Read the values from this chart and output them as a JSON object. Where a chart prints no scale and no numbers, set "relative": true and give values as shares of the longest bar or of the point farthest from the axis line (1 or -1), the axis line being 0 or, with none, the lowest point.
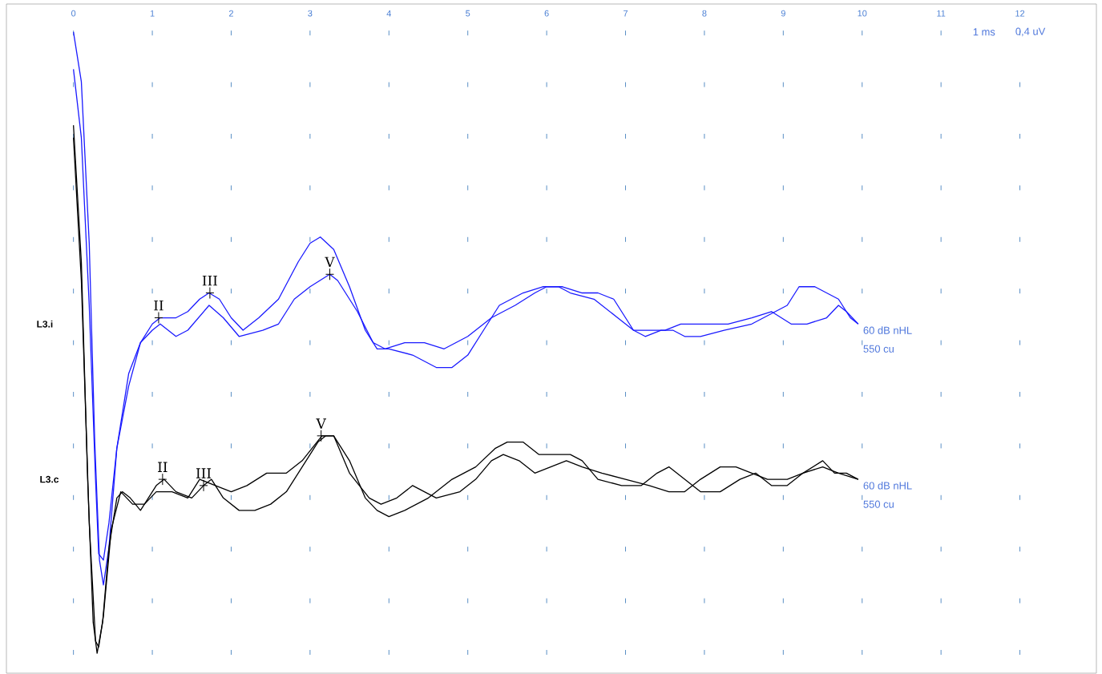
{
  "chart_data": {
    "type": "line",
    "relative": true,
    "xlim": [
      -0.85,
      12.97
    ],
    "xticks": [
      0,
      1,
      2,
      3,
      4,
      5,
      6,
      7,
      8,
      9,
      10,
      11,
      12
    ],
    "grid": "x",
    "line_style": "solid",
    "series": [
      {
        "color": "#1a1aff",
        "x": [
          0,
          0.1,
          0.2,
          0.27,
          0.33,
          0.38,
          0.45,
          0.55,
          0.7,
          0.85,
          1.0,
          1.1,
          1.3,
          1.45,
          1.6,
          1.72,
          1.85,
          2.0,
          2.15,
          2.35,
          2.6,
          2.85,
          3.0,
          3.13,
          3.3,
          3.5,
          3.7,
          3.85,
          4.0,
          4.3,
          4.6,
          4.8,
          5.0,
          5.2,
          5.4,
          5.7,
          5.95,
          6.2,
          6.45,
          6.65,
          6.85,
          7.0,
          7.1,
          7.25,
          7.45,
          7.6,
          7.75,
          7.95,
          8.25,
          8.6,
          8.9,
          9.05,
          9.2,
          9.4,
          9.55,
          9.7,
          9.85,
          9.95
        ],
        "values": [
          1.0,
          0.92,
          0.66,
          0.34,
          0.15,
          0.11,
          0.17,
          0.33,
          0.45,
          0.5,
          0.53,
          0.54,
          0.54,
          0.55,
          0.57,
          0.58,
          0.57,
          0.54,
          0.52,
          0.54,
          0.57,
          0.63,
          0.66,
          0.67,
          0.65,
          0.59,
          0.52,
          0.49,
          0.49,
          0.48,
          0.46,
          0.46,
          0.48,
          0.52,
          0.56,
          0.58,
          0.59,
          0.59,
          0.58,
          0.58,
          0.57,
          0.54,
          0.52,
          0.51,
          0.52,
          0.52,
          0.51,
          0.51,
          0.52,
          0.53,
          0.55,
          0.56,
          0.59,
          0.59,
          0.58,
          0.57,
          0.54,
          0.53
        ]
      },
      {
        "color": "#1a1aff",
        "x": [
          0,
          0.1,
          0.2,
          0.28,
          0.32,
          0.38,
          0.45,
          0.55,
          0.7,
          0.85,
          1.0,
          1.1,
          1.3,
          1.45,
          1.72,
          1.9,
          2.1,
          2.4,
          2.6,
          2.8,
          3.0,
          3.25,
          3.35,
          3.6,
          3.8,
          3.95,
          4.2,
          4.45,
          4.7,
          5.0,
          5.3,
          5.6,
          5.85,
          6.0,
          6.15,
          6.3,
          6.6,
          6.9,
          7.1,
          7.3,
          7.5,
          7.7,
          8.0,
          8.3,
          8.6,
          8.85,
          9.1,
          9.3,
          9.55,
          9.7,
          9.8,
          9.95
        ],
        "values": [
          0.94,
          0.83,
          0.56,
          0.28,
          0.16,
          0.15,
          0.21,
          0.33,
          0.43,
          0.5,
          0.52,
          0.53,
          0.51,
          0.52,
          0.56,
          0.54,
          0.51,
          0.52,
          0.53,
          0.57,
          0.59,
          0.61,
          0.6,
          0.55,
          0.5,
          0.49,
          0.5,
          0.5,
          0.49,
          0.51,
          0.54,
          0.56,
          0.58,
          0.59,
          0.59,
          0.58,
          0.57,
          0.54,
          0.52,
          0.52,
          0.52,
          0.53,
          0.53,
          0.53,
          0.54,
          0.55,
          0.53,
          0.53,
          0.54,
          0.56,
          0.55,
          0.53
        ]
      },
      {
        "color": "#000000",
        "x": [
          0,
          0.1,
          0.18,
          0.25,
          0.3,
          0.37,
          0.45,
          0.55,
          0.62,
          0.72,
          0.85,
          0.95,
          1.05,
          1.15,
          1.3,
          1.5,
          1.65,
          1.75,
          1.9,
          2.1,
          2.3,
          2.5,
          2.7,
          2.9,
          3.1,
          3.2,
          3.3,
          3.5,
          3.7,
          3.85,
          4.0,
          4.2,
          4.5,
          4.8,
          5.1,
          5.35,
          5.5,
          5.7,
          5.9,
          6.1,
          6.3,
          6.45,
          6.65,
          6.95,
          7.2,
          7.4,
          7.55,
          7.75,
          7.95,
          8.2,
          8.45,
          8.65,
          8.85,
          9.05,
          9.25,
          9.5,
          9.65,
          9.8,
          9.95
        ],
        "values": [
          0.85,
          0.63,
          0.28,
          0.05,
          0.0,
          0.05,
          0.17,
          0.25,
          0.26,
          0.25,
          0.23,
          0.25,
          0.27,
          0.28,
          0.26,
          0.25,
          0.27,
          0.28,
          0.25,
          0.23,
          0.23,
          0.24,
          0.26,
          0.3,
          0.34,
          0.35,
          0.35,
          0.31,
          0.25,
          0.23,
          0.22,
          0.23,
          0.25,
          0.28,
          0.3,
          0.33,
          0.34,
          0.34,
          0.32,
          0.32,
          0.32,
          0.31,
          0.28,
          0.27,
          0.27,
          0.29,
          0.3,
          0.28,
          0.26,
          0.26,
          0.28,
          0.29,
          0.27,
          0.27,
          0.29,
          0.31,
          0.29,
          0.29,
          0.28
        ]
      },
      {
        "color": "#000000",
        "x": [
          0,
          0.1,
          0.2,
          0.28,
          0.32,
          0.38,
          0.48,
          0.6,
          0.75,
          0.9,
          1.05,
          1.25,
          1.45,
          1.6,
          1.8,
          2.0,
          2.2,
          2.45,
          2.7,
          2.9,
          3.15,
          3.3,
          3.5,
          3.75,
          3.9,
          4.1,
          4.3,
          4.6,
          4.9,
          5.1,
          5.3,
          5.45,
          5.65,
          5.85,
          6.05,
          6.25,
          6.45,
          6.7,
          7.0,
          7.3,
          7.55,
          7.75,
          7.95,
          8.2,
          8.4,
          8.6,
          8.8,
          9.05,
          9.25,
          9.5,
          9.7,
          9.95
        ],
        "values": [
          0.83,
          0.6,
          0.21,
          0.02,
          0.01,
          0.06,
          0.2,
          0.26,
          0.24,
          0.24,
          0.26,
          0.26,
          0.25,
          0.28,
          0.27,
          0.26,
          0.27,
          0.29,
          0.29,
          0.31,
          0.35,
          0.35,
          0.29,
          0.25,
          0.24,
          0.25,
          0.27,
          0.25,
          0.26,
          0.28,
          0.31,
          0.32,
          0.31,
          0.29,
          0.3,
          0.31,
          0.3,
          0.29,
          0.28,
          0.27,
          0.26,
          0.26,
          0.28,
          0.3,
          0.3,
          0.29,
          0.28,
          0.28,
          0.29,
          0.3,
          0.29,
          0.28
        ]
      }
    ],
    "annotations": [
      "L3.i",
      "60 dB nHL",
      "550 cu",
      "L3.c",
      "60 dB nHL",
      "550 cu",
      "1 ms",
      "0,4 uV",
      {
        "text": "II",
        "x": 1.08,
        "y": 0.54
      },
      {
        "text": "III",
        "x": 1.73,
        "y": 0.58
      },
      {
        "text": "V",
        "x": 3.25,
        "y": 0.61
      },
      {
        "text": "II",
        "x": 1.13,
        "y": 0.28
      },
      {
        "text": "III",
        "x": 1.65,
        "y": 0.27
      },
      {
        "text": "V",
        "x": 3.14,
        "y": 0.35
      }
    ]
  }
}
